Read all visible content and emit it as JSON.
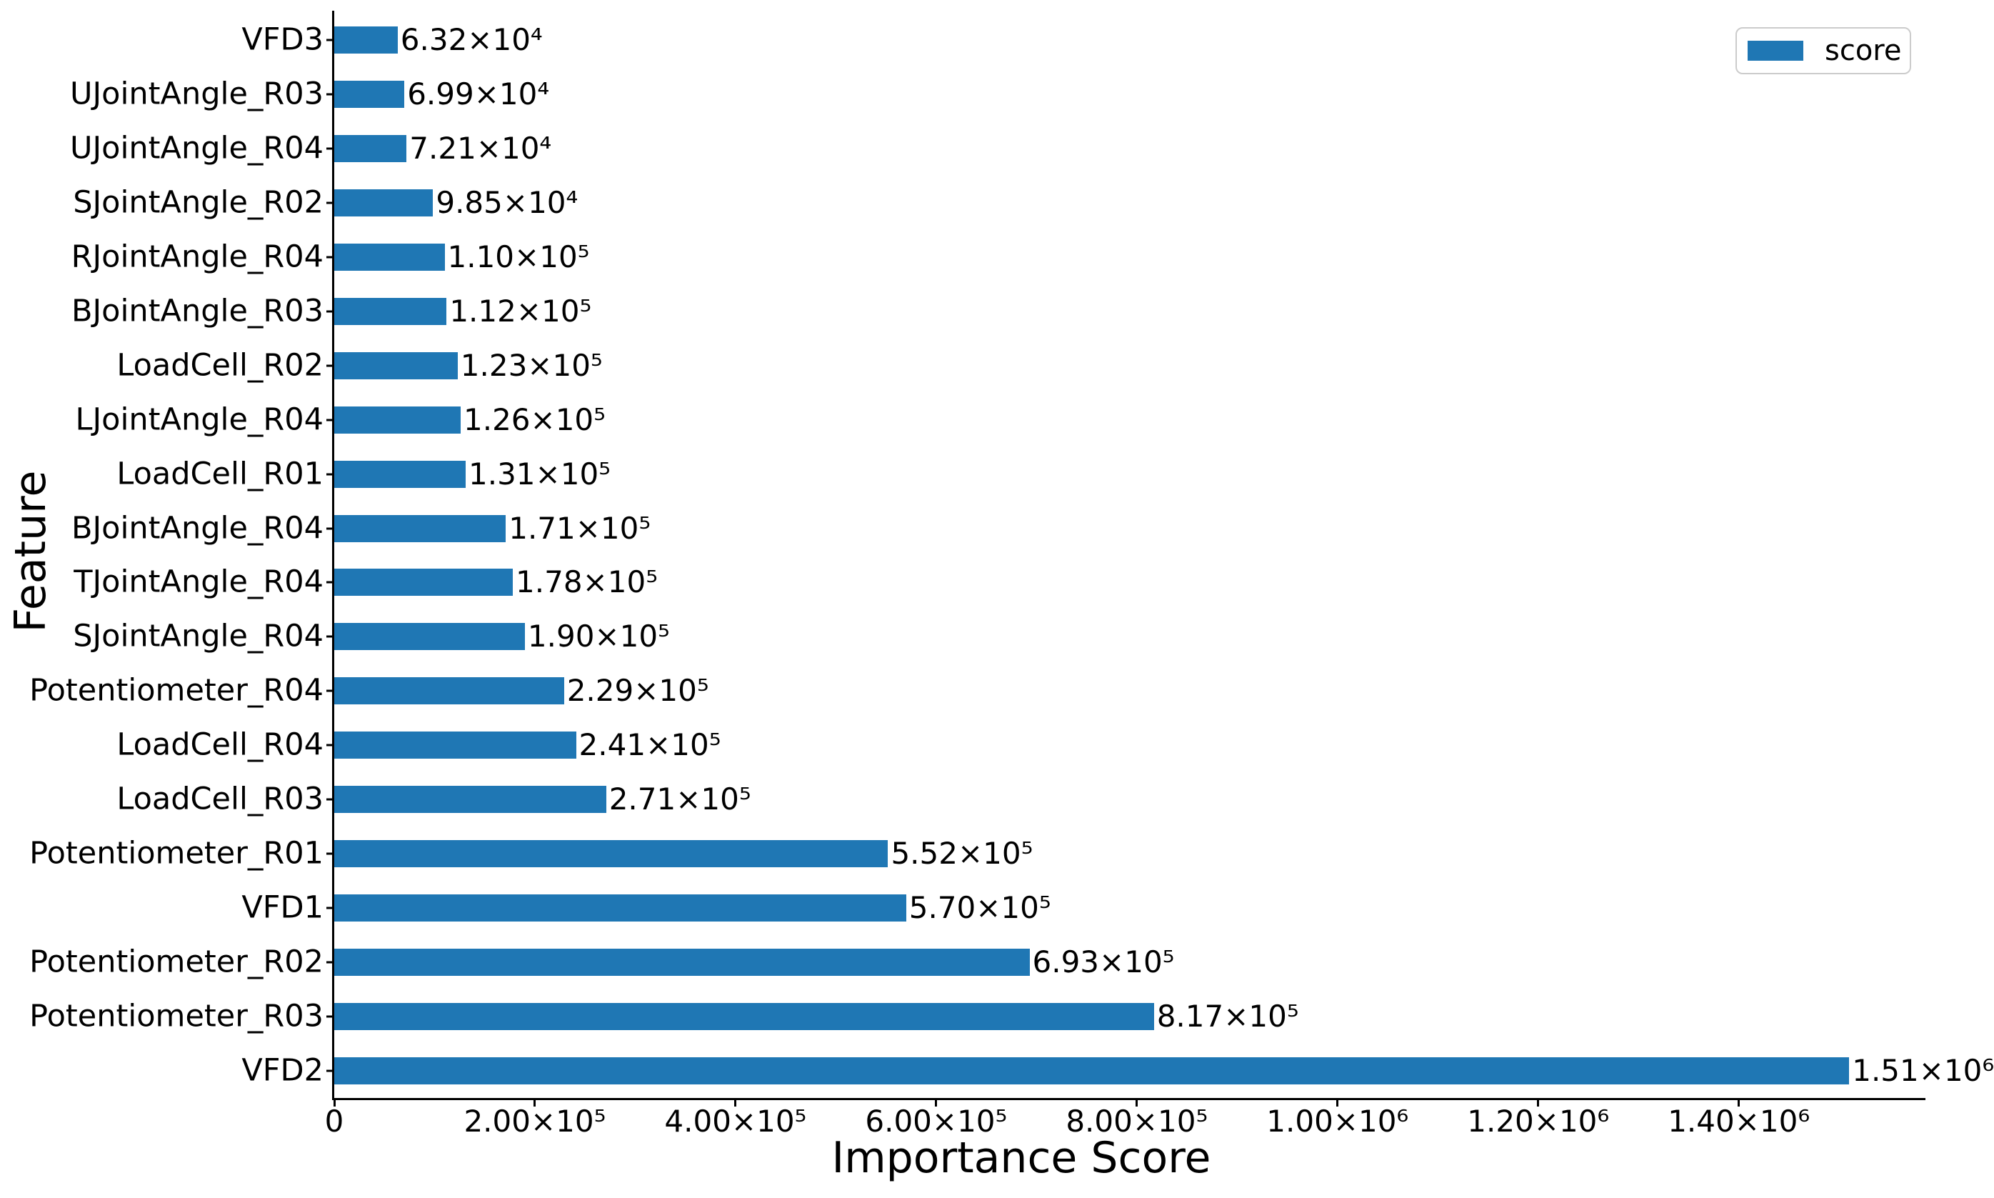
{
  "chart_data": {
    "type": "bar",
    "orientation": "horizontal",
    "title": "",
    "xlabel": "Importance Score",
    "ylabel": "Feature",
    "xlim": [
      0,
      1586000
    ],
    "grid": false,
    "bar_color": "#1f77b4",
    "legend": {
      "label": "score",
      "position": "upper-right",
      "border_color": "#cccccc"
    },
    "x_ticks": [
      {
        "value": 0,
        "label": "0"
      },
      {
        "value": 200000,
        "label": "2.00×10⁵"
      },
      {
        "value": 400000,
        "label": "4.00×10⁵"
      },
      {
        "value": 600000,
        "label": "6.00×10⁵"
      },
      {
        "value": 800000,
        "label": "8.00×10⁵"
      },
      {
        "value": 1000000,
        "label": "1.00×10⁶"
      },
      {
        "value": 1200000,
        "label": "1.20×10⁶"
      },
      {
        "value": 1400000,
        "label": "1.40×10⁶"
      }
    ],
    "bars": [
      {
        "feature": "VFD3",
        "value": 63200,
        "value_label": "6.32×10⁴"
      },
      {
        "feature": "UJointAngle_R03",
        "value": 69900,
        "value_label": "6.99×10⁴"
      },
      {
        "feature": "UJointAngle_R04",
        "value": 72100,
        "value_label": "7.21×10⁴"
      },
      {
        "feature": "SJointAngle_R02",
        "value": 98500,
        "value_label": "9.85×10⁴"
      },
      {
        "feature": "RJointAngle_R04",
        "value": 110000,
        "value_label": "1.10×10⁵"
      },
      {
        "feature": "BJointAngle_R03",
        "value": 112000,
        "value_label": "1.12×10⁵"
      },
      {
        "feature": "LoadCell_R02",
        "value": 123000,
        "value_label": "1.23×10⁵"
      },
      {
        "feature": "LJointAngle_R04",
        "value": 126000,
        "value_label": "1.26×10⁵"
      },
      {
        "feature": "LoadCell_R01",
        "value": 131000,
        "value_label": "1.31×10⁵"
      },
      {
        "feature": "BJointAngle_R04",
        "value": 171000,
        "value_label": "1.71×10⁵"
      },
      {
        "feature": "TJointAngle_R04",
        "value": 178000,
        "value_label": "1.78×10⁵"
      },
      {
        "feature": "SJointAngle_R04",
        "value": 190000,
        "value_label": "1.90×10⁵"
      },
      {
        "feature": "Potentiometer_R04",
        "value": 229000,
        "value_label": "2.29×10⁵"
      },
      {
        "feature": "LoadCell_R04",
        "value": 241000,
        "value_label": "2.41×10⁵"
      },
      {
        "feature": "LoadCell_R03",
        "value": 271000,
        "value_label": "2.71×10⁵"
      },
      {
        "feature": "Potentiometer_R01",
        "value": 552000,
        "value_label": "5.52×10⁵"
      },
      {
        "feature": "VFD1",
        "value": 570000,
        "value_label": "5.70×10⁵"
      },
      {
        "feature": "Potentiometer_R02",
        "value": 693000,
        "value_label": "6.93×10⁵"
      },
      {
        "feature": "Potentiometer_R03",
        "value": 817000,
        "value_label": "8.17×10⁵"
      },
      {
        "feature": "VFD2",
        "value": 1510000,
        "value_label": "1.51×10⁶"
      }
    ]
  }
}
